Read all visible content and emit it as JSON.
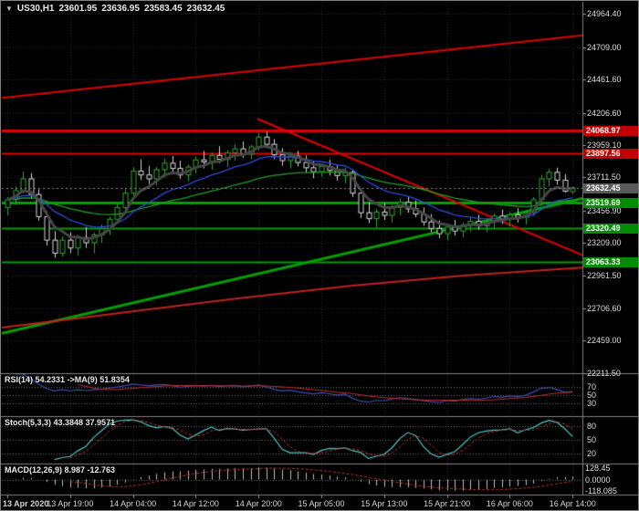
{
  "window": {
    "symbol": "US30,H1",
    "open": "23601.95",
    "high": "23636.95",
    "low": "23583.45",
    "close": "23632.45"
  },
  "icons": {
    "chart_dropdown": "▼"
  },
  "colors": {
    "background": "#000000",
    "border": "#808080",
    "grid": "#2a2a2a",
    "bull": "#2fa52f",
    "bear": "#d6d6d6",
    "ma_fast_dark": "#464646",
    "ma_mid_blue": "#2e4bd8",
    "ma_slow_green": "#1f9e1f",
    "level_red": "#dd0000",
    "level_green": "#00a000",
    "badge_red": "#c00000",
    "badge_green": "#008c00",
    "badge_current": "#5a5a5a",
    "axis_text": "#dedede",
    "rsi_line": "#3c50b4",
    "rsi_ma": "#c03030",
    "stoch_k": "#4fc3c3",
    "stoch_d": "#c03030",
    "macd_hist": "#bfbfbf",
    "macd_signal": "#c03030"
  },
  "price_axis": {
    "values": [
      24964.4,
      24709.0,
      24461.6,
      24206.6,
      23959.1,
      23711.5,
      23456.9,
      23209.0,
      22961.5,
      22706.6,
      22459.0,
      22211.5
    ],
    "labels": [
      "24964.40",
      "24709.00",
      "24461.60",
      "24206.60",
      "23959.10",
      "23711.50",
      "23456.90",
      "23209.00",
      "22961.50",
      "22706.60",
      "22459.00",
      "22211.50"
    ]
  },
  "levels": [
    {
      "price": 24068.97,
      "label": "24068.97",
      "color": "red",
      "width": 3
    },
    {
      "price": 23897.56,
      "label": "23897.56",
      "color": "red",
      "width": 2
    },
    {
      "price": 23519.69,
      "label": "23519.69",
      "color": "green",
      "width": 3
    },
    {
      "price": 23320.49,
      "label": "23320.49",
      "color": "green",
      "width": 2
    },
    {
      "price": 23063.33,
      "label": "23063.33",
      "color": "green",
      "width": 2
    }
  ],
  "current_price": {
    "value": 23632.45,
    "label": "23632.45"
  },
  "trendlines": [
    {
      "name": "ascending-channel-line",
      "color": "#dd0000",
      "width": 2,
      "points": [
        [
          0,
          24320
        ],
        [
          1,
          24800
        ]
      ]
    },
    {
      "name": "descending-trendline",
      "color": "#dd0000",
      "width": 2,
      "points": [
        [
          0.44,
          24160
        ],
        [
          1,
          23115
        ]
      ]
    },
    {
      "name": "ascending-support-line",
      "color": "#00a000",
      "width": 3,
      "points": [
        [
          0,
          22515
        ],
        [
          1,
          23550
        ]
      ]
    },
    {
      "name": "long-term-red-ma",
      "color": "#c22020",
      "width": 2,
      "points": [
        [
          0,
          22560
        ],
        [
          0.2,
          22670
        ],
        [
          0.4,
          22780
        ],
        [
          0.6,
          22880
        ],
        [
          0.8,
          22960
        ],
        [
          1,
          23020
        ]
      ]
    }
  ],
  "panes": {
    "rsi": {
      "label": "RSI(14) 54.2331 ->MA(9) 51.8354",
      "levels": [
        70,
        50,
        30
      ],
      "level_labels": [
        "70",
        "50",
        "30"
      ],
      "range": [
        0,
        100
      ]
    },
    "stoch": {
      "label": "Stoch(5,3,3) 43.3848 37.9571",
      "levels": [
        80,
        50,
        20
      ],
      "level_labels": [
        "80",
        "50",
        "20"
      ],
      "range": [
        0,
        100
      ]
    },
    "macd": {
      "label": "MACD(12,26,9) 8.987 -12.763",
      "axis_labels": [
        {
          "text": "128.45",
          "value": 128.45
        },
        {
          "text": "0.0000",
          "value": 0
        },
        {
          "text": "-118.085",
          "value": -118.085
        }
      ],
      "range": [
        -150,
        150
      ]
    }
  },
  "time_axis": {
    "ticks": [
      {
        "bar": 0,
        "label": "13 Apr 2020"
      },
      {
        "bar": 8,
        "label": "13 Apr 19:00"
      },
      {
        "bar": 16,
        "label": "14 Apr 04:00"
      },
      {
        "bar": 24,
        "label": "14 Apr 12:00"
      },
      {
        "bar": 32,
        "label": "14 Apr 20:00"
      },
      {
        "bar": 40,
        "label": "15 Apr 05:00"
      },
      {
        "bar": 48,
        "label": "15 Apr 13:00"
      },
      {
        "bar": 56,
        "label": "15 Apr 21:00"
      },
      {
        "bar": 64,
        "label": "16 Apr 06:00"
      },
      {
        "bar": 72,
        "label": "16 Apr 14:00"
      }
    ]
  },
  "chart_data": {
    "type": "candlestick",
    "title": "US30 H1",
    "price_range": [
      22210,
      25050
    ],
    "ma_periods": {
      "fast": 5,
      "mid": 13,
      "slow": 34
    },
    "indicators": [
      "RSI(14)",
      "Stoch(5,3,3)",
      "MACD(12,26,9)"
    ],
    "ohlc": [
      [
        23480,
        23560,
        23420,
        23540
      ],
      [
        23540,
        23640,
        23500,
        23610
      ],
      [
        23610,
        23755,
        23590,
        23700
      ],
      [
        23700,
        23745,
        23545,
        23580
      ],
      [
        23580,
        23620,
        23380,
        23410
      ],
      [
        23410,
        23450,
        23190,
        23230
      ],
      [
        23230,
        23300,
        23095,
        23130
      ],
      [
        23130,
        23260,
        23105,
        23230
      ],
      [
        23230,
        23290,
        23130,
        23170
      ],
      [
        23170,
        23270,
        23110,
        23250
      ],
      [
        23250,
        23330,
        23170,
        23210
      ],
      [
        23210,
        23290,
        23130,
        23270
      ],
      [
        23270,
        23350,
        23210,
        23320
      ],
      [
        23320,
        23410,
        23270,
        23390
      ],
      [
        23390,
        23510,
        23360,
        23480
      ],
      [
        23480,
        23620,
        23450,
        23590
      ],
      [
        23590,
        23790,
        23570,
        23760
      ],
      [
        23760,
        23850,
        23690,
        23730
      ],
      [
        23730,
        23800,
        23660,
        23700
      ],
      [
        23700,
        23790,
        23650,
        23770
      ],
      [
        23770,
        23855,
        23710,
        23820
      ],
      [
        23820,
        23875,
        23740,
        23780
      ],
      [
        23780,
        23840,
        23700,
        23730
      ],
      [
        23730,
        23810,
        23680,
        23790
      ],
      [
        23790,
        23870,
        23740,
        23845
      ],
      [
        23845,
        23915,
        23780,
        23830
      ],
      [
        23830,
        23900,
        23770,
        23880
      ],
      [
        23880,
        23950,
        23820,
        23850
      ],
      [
        23850,
        23920,
        23790,
        23900
      ],
      [
        23900,
        23965,
        23840,
        23930
      ],
      [
        23930,
        23985,
        23860,
        23890
      ],
      [
        23890,
        23960,
        23850,
        23945
      ],
      [
        23945,
        24055,
        23920,
        24020
      ],
      [
        24020,
        24062,
        23935,
        23965
      ],
      [
        23965,
        24005,
        23850,
        23885
      ],
      [
        23885,
        23935,
        23800,
        23840
      ],
      [
        23840,
        23905,
        23780,
        23875
      ],
      [
        23875,
        23915,
        23795,
        23825
      ],
      [
        23825,
        23880,
        23745,
        23785
      ],
      [
        23785,
        23840,
        23705,
        23755
      ],
      [
        23755,
        23815,
        23715,
        23795
      ],
      [
        23795,
        23845,
        23725,
        23765
      ],
      [
        23765,
        23805,
        23685,
        23725
      ],
      [
        23725,
        23785,
        23665,
        23750
      ],
      [
        23750,
        23770,
        23560,
        23590
      ],
      [
        23590,
        23620,
        23400,
        23440
      ],
      [
        23440,
        23520,
        23360,
        23395
      ],
      [
        23395,
        23470,
        23330,
        23445
      ],
      [
        23445,
        23515,
        23385,
        23420
      ],
      [
        23420,
        23500,
        23365,
        23480
      ],
      [
        23480,
        23550,
        23420,
        23520
      ],
      [
        23520,
        23565,
        23440,
        23470
      ],
      [
        23470,
        23535,
        23405,
        23430
      ],
      [
        23430,
        23480,
        23340,
        23370
      ],
      [
        23370,
        23430,
        23290,
        23320
      ],
      [
        23320,
        23380,
        23245,
        23280
      ],
      [
        23280,
        23350,
        23230,
        23330
      ],
      [
        23330,
        23385,
        23265,
        23300
      ],
      [
        23300,
        23365,
        23250,
        23345
      ],
      [
        23345,
        23405,
        23295,
        23375
      ],
      [
        23375,
        23425,
        23310,
        23340
      ],
      [
        23340,
        23400,
        23290,
        23370
      ],
      [
        23370,
        23435,
        23325,
        23415
      ],
      [
        23415,
        23465,
        23355,
        23390
      ],
      [
        23390,
        23445,
        23335,
        23425
      ],
      [
        23425,
        23475,
        23365,
        23405
      ],
      [
        23405,
        23455,
        23350,
        23440
      ],
      [
        23440,
        23560,
        23415,
        23540
      ],
      [
        23540,
        23730,
        23520,
        23700
      ],
      [
        23700,
        23775,
        23640,
        23750
      ],
      [
        23750,
        23785,
        23655,
        23690
      ],
      [
        23690,
        23735,
        23595,
        23605
      ],
      [
        23601.95,
        23636.95,
        23583.45,
        23632.45
      ]
    ]
  }
}
